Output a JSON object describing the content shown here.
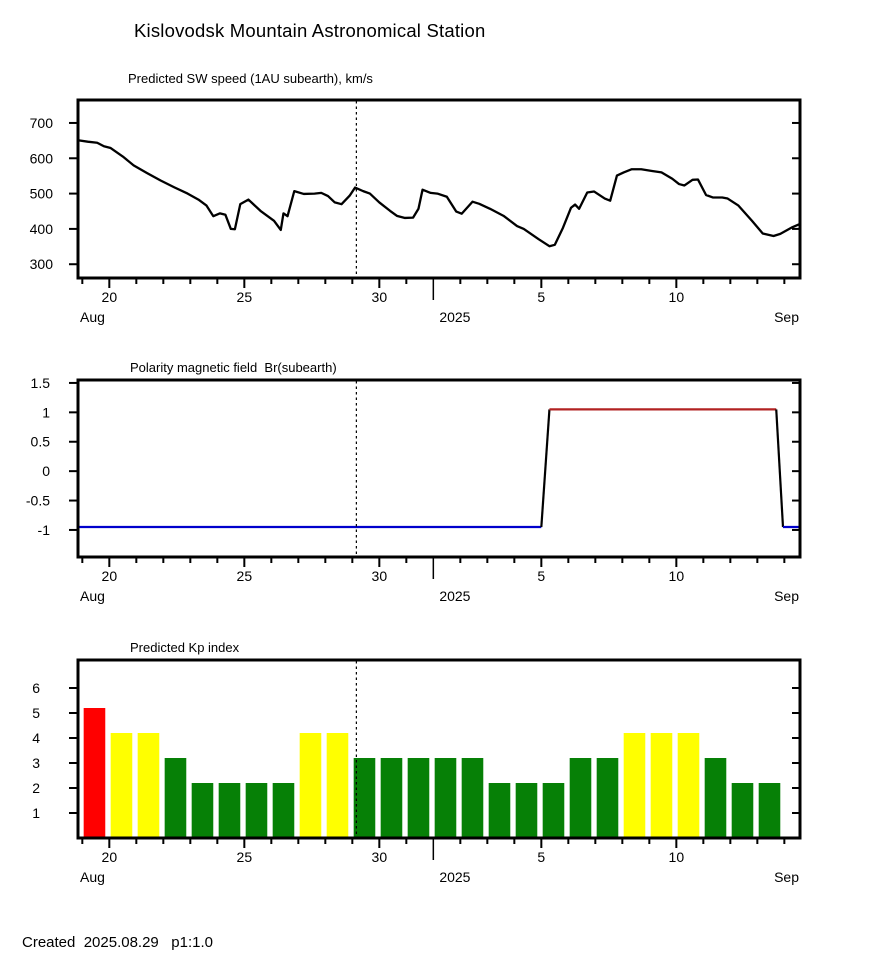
{
  "header": {
    "title": "Kislovodsk Mountain Astronomical Station"
  },
  "footer": {
    "created_text": "Created  2025.08.29   p1:1.0"
  },
  "colors": {
    "speed_line": "#000000",
    "polarity_negative": "#0000CC",
    "polarity_positive": "#B22222",
    "transition": "#000000",
    "kp_red": "#FF0000",
    "kp_yellow": "#FFFF00",
    "kp_green": "#068006",
    "axis": "#000000"
  },
  "x_axis": {
    "description": "day number counted in August 2025 (32 = Sep 1)",
    "domain": [
      18.84,
      45.58
    ],
    "major_ticks": [
      {
        "day": 20,
        "label": "20"
      },
      {
        "day": 25,
        "label": "25"
      },
      {
        "day": 30,
        "label": "30"
      },
      {
        "day": 36,
        "label": "5"
      },
      {
        "day": 41,
        "label": "10"
      }
    ],
    "minor_tick_days": [
      19,
      21,
      22,
      23,
      24,
      26,
      27,
      28,
      29,
      31,
      33,
      34,
      35,
      37,
      38,
      39,
      40,
      42,
      43,
      44,
      45
    ],
    "year_tick_day": 32,
    "year_label": "2025",
    "month_left": "Aug",
    "month_right": "Sep",
    "now_line_day": 29.15
  },
  "chart_data": [
    {
      "type": "line",
      "title": "Predicted SW speed (1AU subearth), km/s",
      "ylabel": "km/s",
      "y_domain": [
        261,
        765
      ],
      "yticks": [
        {
          "value": 300,
          "label": "300"
        },
        {
          "value": 400,
          "label": "400"
        },
        {
          "value": 500,
          "label": "500"
        },
        {
          "value": 600,
          "label": "600"
        },
        {
          "value": 700,
          "label": "700"
        }
      ],
      "points": [
        [
          18.84,
          651
        ],
        [
          19.2,
          647
        ],
        [
          19.55,
          644
        ],
        [
          19.8,
          634
        ],
        [
          20.05,
          629
        ],
        [
          20.5,
          605
        ],
        [
          20.9,
          580
        ],
        [
          21.4,
          558
        ],
        [
          21.9,
          537
        ],
        [
          22.4,
          518
        ],
        [
          22.9,
          500
        ],
        [
          23.3,
          483
        ],
        [
          23.6,
          466
        ],
        [
          23.85,
          436
        ],
        [
          24.1,
          444
        ],
        [
          24.3,
          440
        ],
        [
          24.5,
          400
        ],
        [
          24.65,
          399
        ],
        [
          24.85,
          470
        ],
        [
          25.15,
          483
        ],
        [
          25.6,
          451
        ],
        [
          26.1,
          423
        ],
        [
          26.35,
          397
        ],
        [
          26.45,
          444
        ],
        [
          26.6,
          436
        ],
        [
          26.85,
          507
        ],
        [
          27.2,
          499
        ],
        [
          27.6,
          500
        ],
        [
          27.85,
          502
        ],
        [
          28.1,
          493
        ],
        [
          28.35,
          475
        ],
        [
          28.6,
          470
        ],
        [
          28.9,
          494
        ],
        [
          29.1,
          517
        ],
        [
          29.4,
          507
        ],
        [
          29.65,
          500
        ],
        [
          30,
          475
        ],
        [
          30.4,
          451
        ],
        [
          30.65,
          437
        ],
        [
          30.95,
          431
        ],
        [
          31.25,
          432
        ],
        [
          31.45,
          457
        ],
        [
          31.6,
          511
        ],
        [
          31.9,
          502
        ],
        [
          32.15,
          500
        ],
        [
          32.5,
          491
        ],
        [
          32.85,
          449
        ],
        [
          33.05,
          443
        ],
        [
          33.45,
          477
        ],
        [
          33.7,
          471
        ],
        [
          34.1,
          457
        ],
        [
          34.6,
          437
        ],
        [
          35.1,
          408
        ],
        [
          35.35,
          400
        ],
        [
          35.9,
          371
        ],
        [
          36.3,
          351
        ],
        [
          36.5,
          355
        ],
        [
          36.8,
          403
        ],
        [
          37.1,
          460
        ],
        [
          37.25,
          469
        ],
        [
          37.4,
          457
        ],
        [
          37.7,
          503
        ],
        [
          37.95,
          506
        ],
        [
          38.35,
          486
        ],
        [
          38.55,
          480
        ],
        [
          38.8,
          551
        ],
        [
          39.05,
          560
        ],
        [
          39.35,
          569
        ],
        [
          39.7,
          569
        ],
        [
          40.1,
          564
        ],
        [
          40.45,
          560
        ],
        [
          40.85,
          542
        ],
        [
          41.1,
          527
        ],
        [
          41.3,
          523
        ],
        [
          41.6,
          539
        ],
        [
          41.8,
          540
        ],
        [
          42.1,
          496
        ],
        [
          42.35,
          489
        ],
        [
          42.7,
          489
        ],
        [
          42.9,
          486
        ],
        [
          43.3,
          466
        ],
        [
          43.8,
          423
        ],
        [
          44.2,
          387
        ],
        [
          44.6,
          380
        ],
        [
          44.85,
          386
        ],
        [
          45.3,
          405
        ],
        [
          45.58,
          414
        ]
      ]
    },
    {
      "type": "line",
      "title": "Polarity magnetic field  Br(subearth)",
      "y_domain": [
        -1.46,
        1.55
      ],
      "yticks": [
        {
          "value": 1.5,
          "label": "1.5"
        },
        {
          "value": 1,
          "label": "1"
        },
        {
          "value": 0.5,
          "label": "0.5"
        },
        {
          "value": 0,
          "label": "0"
        },
        {
          "value": -0.5,
          "label": "-0.5"
        },
        {
          "value": -1,
          "label": "-1"
        }
      ],
      "segments": [
        {
          "name": "negative-polarity",
          "color_key": "polarity_negative",
          "points": [
            [
              18.84,
              -0.95
            ],
            [
              36.0,
              -0.95
            ]
          ]
        },
        {
          "name": "transition-up",
          "color_key": "transition",
          "points": [
            [
              36.0,
              -0.95
            ],
            [
              36.3,
              1.05
            ]
          ]
        },
        {
          "name": "positive-polarity",
          "color_key": "polarity_positive",
          "points": [
            [
              36.3,
              1.05
            ],
            [
              44.7,
              1.05
            ]
          ]
        },
        {
          "name": "transition-down",
          "color_key": "transition",
          "points": [
            [
              44.7,
              1.05
            ],
            [
              44.95,
              -0.95
            ]
          ]
        },
        {
          "name": "negative-polarity-end",
          "color_key": "polarity_negative",
          "points": [
            [
              44.95,
              -0.95
            ],
            [
              45.58,
              -0.95
            ]
          ]
        }
      ]
    },
    {
      "type": "bar",
      "title": "Predicted Kp index",
      "y_domain": [
        0,
        7.12
      ],
      "yticks": [
        {
          "value": 1,
          "label": "1"
        },
        {
          "value": 2,
          "label": "2"
        },
        {
          "value": 3,
          "label": "3"
        },
        {
          "value": 4,
          "label": "4"
        },
        {
          "value": 5,
          "label": "5"
        },
        {
          "value": 6,
          "label": "6"
        }
      ],
      "bars": [
        {
          "date": "Aug 19",
          "day": 19,
          "value": 5.2,
          "color_key": "kp_red"
        },
        {
          "date": "Aug 20",
          "day": 20,
          "value": 4.2,
          "color_key": "kp_yellow"
        },
        {
          "date": "Aug 21",
          "day": 21,
          "value": 4.2,
          "color_key": "kp_yellow"
        },
        {
          "date": "Aug 22",
          "day": 22,
          "value": 3.2,
          "color_key": "kp_green"
        },
        {
          "date": "Aug 23",
          "day": 23,
          "value": 2.2,
          "color_key": "kp_green"
        },
        {
          "date": "Aug 24",
          "day": 24,
          "value": 2.2,
          "color_key": "kp_green"
        },
        {
          "date": "Aug 25",
          "day": 25,
          "value": 2.2,
          "color_key": "kp_green"
        },
        {
          "date": "Aug 26",
          "day": 26,
          "value": 2.2,
          "color_key": "kp_green"
        },
        {
          "date": "Aug 27",
          "day": 27,
          "value": 4.2,
          "color_key": "kp_yellow"
        },
        {
          "date": "Aug 28",
          "day": 28,
          "value": 4.2,
          "color_key": "kp_yellow"
        },
        {
          "date": "Aug 29",
          "day": 29,
          "value": 3.2,
          "color_key": "kp_green"
        },
        {
          "date": "Aug 30",
          "day": 30,
          "value": 3.2,
          "color_key": "kp_green"
        },
        {
          "date": "Aug 31",
          "day": 31,
          "value": 3.2,
          "color_key": "kp_green"
        },
        {
          "date": "Sep 1",
          "day": 32,
          "value": 3.2,
          "color_key": "kp_green"
        },
        {
          "date": "Sep 2",
          "day": 33,
          "value": 3.2,
          "color_key": "kp_green"
        },
        {
          "date": "Sep 3",
          "day": 34,
          "value": 2.2,
          "color_key": "kp_green"
        },
        {
          "date": "Sep 4",
          "day": 35,
          "value": 2.2,
          "color_key": "kp_green"
        },
        {
          "date": "Sep 5",
          "day": 36,
          "value": 2.2,
          "color_key": "kp_green"
        },
        {
          "date": "Sep 6",
          "day": 37,
          "value": 3.2,
          "color_key": "kp_green"
        },
        {
          "date": "Sep 7",
          "day": 38,
          "value": 3.2,
          "color_key": "kp_green"
        },
        {
          "date": "Sep 8",
          "day": 39,
          "value": 4.2,
          "color_key": "kp_yellow"
        },
        {
          "date": "Sep 9",
          "day": 40,
          "value": 4.2,
          "color_key": "kp_yellow"
        },
        {
          "date": "Sep 10",
          "day": 41,
          "value": 4.2,
          "color_key": "kp_yellow"
        },
        {
          "date": "Sep 11",
          "day": 42,
          "value": 3.2,
          "color_key": "kp_green"
        },
        {
          "date": "Sep 12",
          "day": 43,
          "value": 2.2,
          "color_key": "kp_green"
        },
        {
          "date": "Sep 13",
          "day": 44,
          "value": 2.2,
          "color_key": "kp_green"
        }
      ]
    }
  ]
}
